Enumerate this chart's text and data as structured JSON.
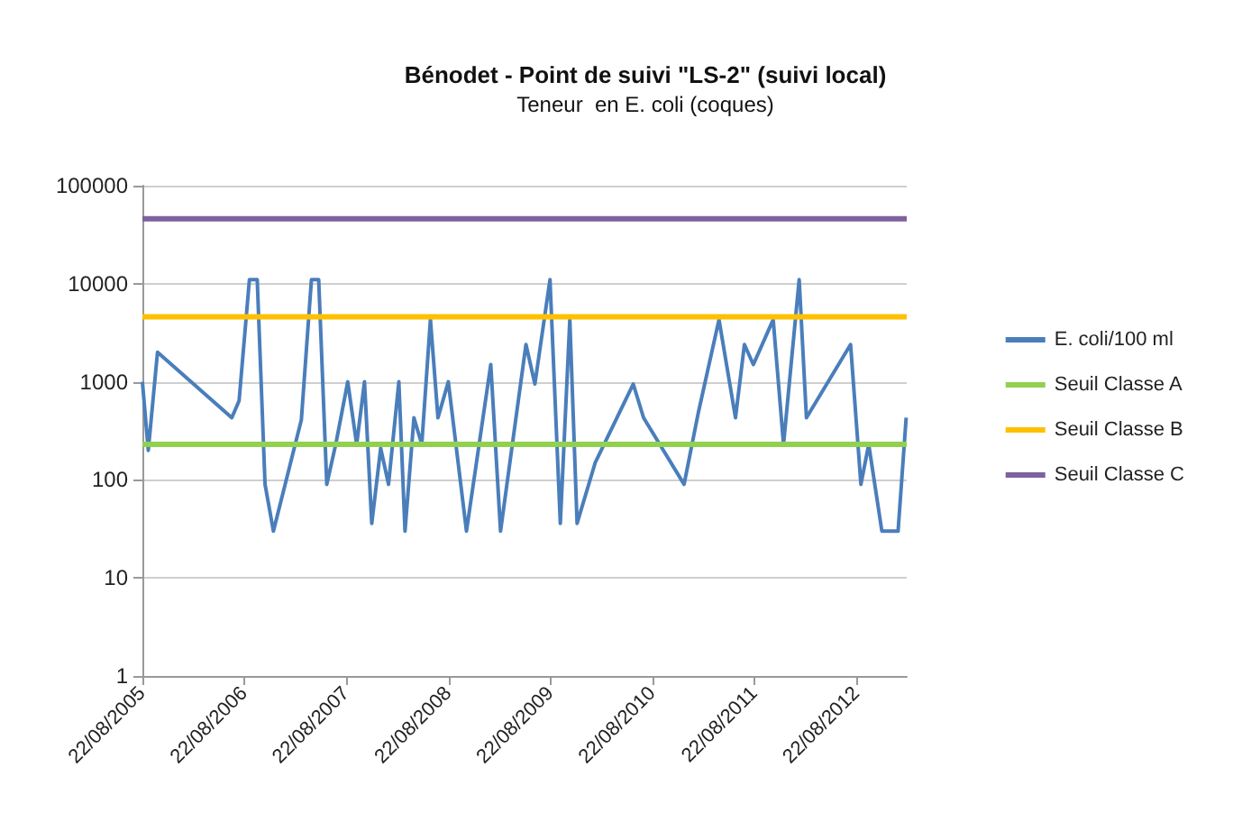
{
  "chart_data": {
    "type": "line",
    "title": "Bénodet - Point de suivi \"LS-2\" (suivi local)",
    "subtitle": "Teneur  en E. coli (coques)",
    "x": [
      "2005-08-22",
      "2005-09-12",
      "2005-10-15",
      "2006-07-08",
      "2006-08-03",
      "2006-09-09",
      "2006-10-07",
      "2006-11-04",
      "2006-12-04",
      "2007-03-14",
      "2007-04-19",
      "2007-05-15",
      "2007-06-13",
      "2007-07-15",
      "2007-08-27",
      "2007-09-28",
      "2007-10-26",
      "2007-11-21",
      "2007-12-23",
      "2008-01-20",
      "2008-02-26",
      "2008-03-19",
      "2008-04-20",
      "2008-05-18",
      "2008-06-18",
      "2008-07-15",
      "2008-08-21",
      "2008-10-25",
      "2009-01-20",
      "2009-02-24",
      "2009-05-26",
      "2009-06-27",
      "2009-08-20",
      "2009-09-26",
      "2009-10-30",
      "2009-11-25",
      "2010-01-29",
      "2010-06-14",
      "2010-07-21",
      "2010-12-13",
      "2011-02-01",
      "2011-04-17",
      "2011-06-15",
      "2011-07-17",
      "2011-08-18",
      "2011-10-28",
      "2011-12-04",
      "2012-01-29",
      "2012-02-24",
      "2012-07-31",
      "2012-09-06",
      "2012-10-04",
      "2012-11-20",
      "2013-01-17",
      "2013-02-15"
    ],
    "series": [
      {
        "name": "E. coli/100 ml",
        "color": "#4a7ebb",
        "values": [
          1000,
          200,
          2000,
          430,
          640,
          11000,
          11000,
          90,
          30,
          410,
          11000,
          11000,
          90,
          230,
          1000,
          230,
          1000,
          36,
          210,
          90,
          1000,
          30,
          430,
          230,
          4300,
          430,
          1000,
          30,
          1500,
          30,
          2400,
          950,
          11000,
          36,
          4300,
          36,
          150,
          950,
          430,
          90,
          470,
          4300,
          430,
          2400,
          1500,
          4300,
          230,
          11000,
          430,
          2400,
          90,
          230,
          30,
          30,
          430
        ]
      }
    ],
    "ref_lines": [
      {
        "axis": "y",
        "value": 230,
        "label": "Seuil Classe A",
        "color": "#92d050"
      },
      {
        "axis": "y",
        "value": 4600,
        "label": "Seuil Classe B",
        "color": "#ffc000"
      },
      {
        "axis": "y",
        "value": 46000,
        "label": "Seuil Classe C",
        "color": "#7f60a0"
      }
    ],
    "xlim": [
      "2005-08-22",
      "2013-02-17"
    ],
    "xticks": [
      {
        "value": "2005-08-22",
        "label": "22/08/2005"
      },
      {
        "value": "2006-08-22",
        "label": "22/08/2006"
      },
      {
        "value": "2007-08-22",
        "label": "22/08/2007"
      },
      {
        "value": "2008-08-22",
        "label": "22/08/2008"
      },
      {
        "value": "2009-08-22",
        "label": "22/08/2009"
      },
      {
        "value": "2010-08-22",
        "label": "22/08/2010"
      },
      {
        "value": "2011-08-22",
        "label": "22/08/2011"
      },
      {
        "value": "2012-08-22",
        "label": "22/08/2012"
      }
    ],
    "ylim": [
      1,
      100000
    ],
    "yticks": [
      1,
      10,
      100,
      1000,
      10000,
      100000
    ],
    "log": "y",
    "grid": "y",
    "legend": "right",
    "marker": "none",
    "line_style": "solid"
  }
}
